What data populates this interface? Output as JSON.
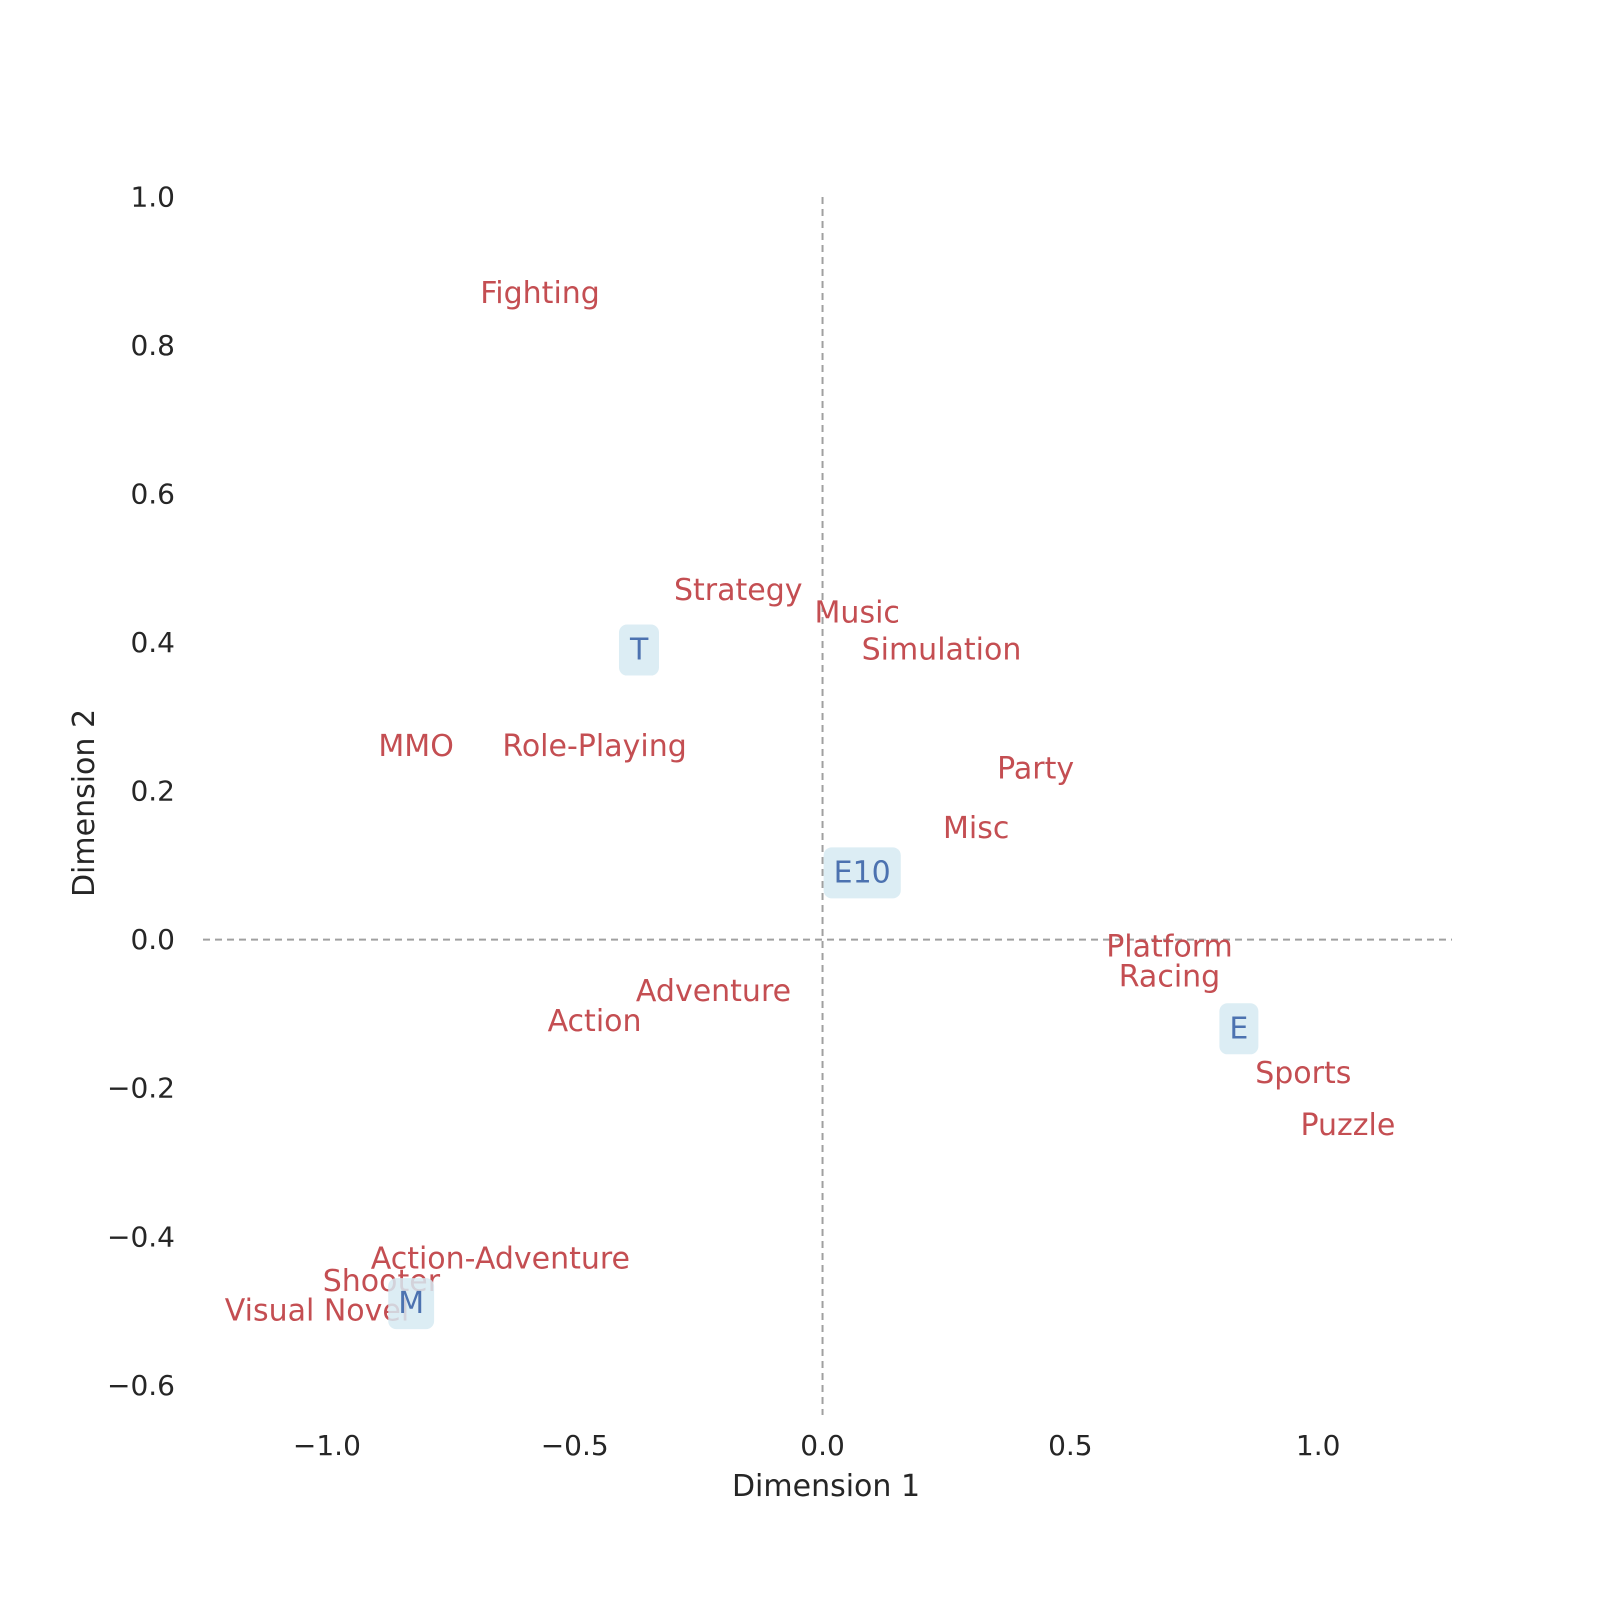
{
  "chart_data": {
    "type": "scatter",
    "title": "",
    "xlabel": "Dimension 1",
    "ylabel": "Dimension 2",
    "xlim": [
      -1.25,
      1.27
    ],
    "ylim": [
      -0.64,
      1.0
    ],
    "xticks": [
      -1.0,
      -0.5,
      0.0,
      0.5,
      1.0
    ],
    "xtick_labels": [
      "−1.0",
      "−0.5",
      "0.0",
      "0.5",
      "1.0"
    ],
    "yticks": [
      -0.6,
      -0.4,
      -0.2,
      0.0,
      0.2,
      0.4,
      0.6,
      0.8,
      1.0
    ],
    "ytick_labels": [
      "−0.6",
      "−0.4",
      "−0.2",
      "0.0",
      "0.2",
      "0.4",
      "0.6",
      "0.8",
      "1.0"
    ],
    "grid": false,
    "reference_lines": {
      "x": 0.0,
      "y": 0.0,
      "style": "dashed"
    },
    "colors": {
      "genre": "#c44e52",
      "rating": "#4c72b0",
      "rating_box": "#d6eaf2",
      "reference_line": "#a0a0a0",
      "axis_text": "#262626"
    },
    "series": [
      {
        "points": [
          {
            "label": "Fighting",
            "x": -0.57,
            "y": 0.87
          },
          {
            "label": "Strategy",
            "x": -0.17,
            "y": 0.47
          },
          {
            "label": "Music",
            "x": 0.07,
            "y": 0.44
          },
          {
            "label": "Simulation",
            "x": 0.24,
            "y": 0.39
          },
          {
            "label": "MMO",
            "x": -0.82,
            "y": 0.26
          },
          {
            "label": "Role-Playing",
            "x": -0.46,
            "y": 0.26
          },
          {
            "label": "Party",
            "x": 0.43,
            "y": 0.23
          },
          {
            "label": "Misc",
            "x": 0.31,
            "y": 0.15
          },
          {
            "label": "Platform",
            "x": 0.7,
            "y": -0.01
          },
          {
            "label": "Racing",
            "x": 0.7,
            "y": -0.05
          },
          {
            "label": "Adventure",
            "x": -0.22,
            "y": -0.07
          },
          {
            "label": "Action",
            "x": -0.46,
            "y": -0.11
          },
          {
            "label": "Sports",
            "x": 0.97,
            "y": -0.18
          },
          {
            "label": "Puzzle",
            "x": 1.06,
            "y": -0.25
          },
          {
            "label": "Action-Adventure",
            "x": -0.65,
            "y": -0.43
          },
          {
            "label": "Shooter",
            "x": -0.89,
            "y": -0.46
          },
          {
            "label": "Visual Novel",
            "x": -1.02,
            "y": -0.5
          }
        ]
      },
      {
        "points": [
          {
            "label": "T",
            "x": -0.37,
            "y": 0.39
          },
          {
            "label": "E10",
            "x": 0.08,
            "y": 0.09
          },
          {
            "label": "E",
            "x": 0.84,
            "y": -0.12
          },
          {
            "label": "M",
            "x": -0.83,
            "y": -0.49
          }
        ]
      }
    ]
  }
}
